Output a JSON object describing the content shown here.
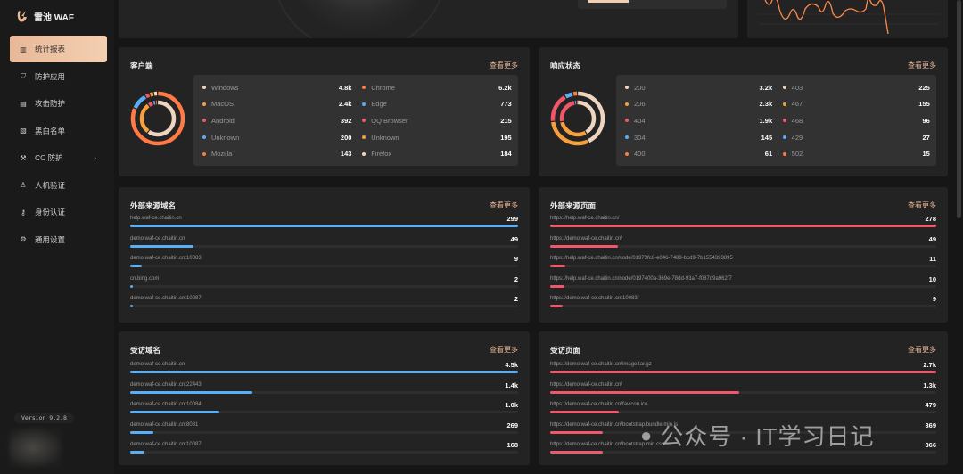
{
  "app": {
    "name": "雷池 WAF",
    "version": "Version 9.2.8"
  },
  "sidebar": {
    "items": [
      {
        "label": "统计报表",
        "icon": "bar-chart-icon",
        "active": true
      },
      {
        "label": "防护应用",
        "icon": "shield-icon"
      },
      {
        "label": "攻击防护",
        "icon": "document-shield-icon"
      },
      {
        "label": "黑白名单",
        "icon": "list-icon"
      },
      {
        "label": "CC 防护",
        "icon": "wand-icon",
        "has_submenu": true
      },
      {
        "label": "人机验证",
        "icon": "robot-icon"
      },
      {
        "label": "身份认证",
        "icon": "key-icon"
      },
      {
        "label": "通用设置",
        "icon": "gear-icon"
      }
    ]
  },
  "colors": {
    "accent": "#e8b898",
    "blue": "#5aaef5",
    "red": "#f0576b",
    "beige": "#efd5bf",
    "orange": "#f5a03c",
    "orange_red": "#ff7a45"
  },
  "more_label": "查看更多",
  "client": {
    "title": "客户端",
    "col1": [
      {
        "name": "Windows",
        "value": "4.8k",
        "color": "#efd5bf",
        "n": 4800
      },
      {
        "name": "MacOS",
        "value": "2.4k",
        "color": "#f5a03c",
        "n": 2400
      },
      {
        "name": "Android",
        "value": "392",
        "color": "#f0576b",
        "n": 392
      },
      {
        "name": "Unknown",
        "value": "200",
        "color": "#5aaef5",
        "n": 200
      },
      {
        "name": "Mozilla",
        "value": "143",
        "color": "#ff7a45",
        "n": 143
      }
    ],
    "col2": [
      {
        "name": "Chrome",
        "value": "6.2k",
        "color": "#ff7a45",
        "n": 6200
      },
      {
        "name": "Edge",
        "value": "773",
        "color": "#5aaef5",
        "n": 773
      },
      {
        "name": "QQ Browser",
        "value": "215",
        "color": "#f0576b",
        "n": 215
      },
      {
        "name": "Unknown",
        "value": "195",
        "color": "#f5a03c",
        "n": 195
      },
      {
        "name": "Firefox",
        "value": "184",
        "color": "#efd5bf",
        "n": 184
      }
    ]
  },
  "status": {
    "title": "响应状态",
    "col1": [
      {
        "name": "200",
        "value": "3.2k",
        "color": "#efd5bf",
        "n": 3200
      },
      {
        "name": "206",
        "value": "2.3k",
        "color": "#f5a03c",
        "n": 2300
      },
      {
        "name": "404",
        "value": "1.9k",
        "color": "#f0576b",
        "n": 1900
      },
      {
        "name": "304",
        "value": "145",
        "color": "#5aaef5",
        "n": 145
      },
      {
        "name": "400",
        "value": "61",
        "color": "#ff7a45",
        "n": 61
      }
    ],
    "col2": [
      {
        "name": "403",
        "value": "225",
        "color": "#efd5bf",
        "n": 225
      },
      {
        "name": "467",
        "value": "155",
        "color": "#f5a03c",
        "n": 155
      },
      {
        "name": "468",
        "value": "96",
        "color": "#f0576b",
        "n": 96
      },
      {
        "name": "429",
        "value": "27",
        "color": "#5aaef5",
        "n": 27
      },
      {
        "name": "502",
        "value": "15",
        "color": "#ff7a45",
        "n": 15
      }
    ]
  },
  "ref_domains": {
    "title": "外部来源域名",
    "color": "#5aaef5",
    "rows": [
      {
        "label": "help.waf-ce.chaitin.cn",
        "value": "299",
        "fraction": 1
      },
      {
        "label": "demo.waf-ce.chaitin.cn",
        "value": "49",
        "fraction": 0.164
      },
      {
        "label": "demo.waf-ce.chaitin.cn:10083",
        "value": "9",
        "fraction": 0.03
      },
      {
        "label": "cn.bing.com",
        "value": "2",
        "fraction": 0.007
      },
      {
        "label": "demo.waf-ce.chaitin.cn:10087",
        "value": "2",
        "fraction": 0.007
      }
    ]
  },
  "ref_pages": {
    "title": "外部来源页面",
    "color": "#f0576b",
    "rows": [
      {
        "label": "https://help.waf-ce.chaitin.cn/",
        "value": "278",
        "fraction": 1
      },
      {
        "label": "https://demo.waf-ce.chaitin.cn/",
        "value": "49",
        "fraction": 0.176
      },
      {
        "label": "https://help.waf-ce.chaitin.cn/node/01973fc6-e046-7489-bcd9-7b1554393895",
        "value": "11",
        "fraction": 0.04
      },
      {
        "label": "https://help.waf-ce.chaitin.cn/node/0197400a-369e-78dd-93a7-f087d9a962f7",
        "value": "10",
        "fraction": 0.036
      },
      {
        "label": "https://demo.waf-ce.chaitin.cn:10083/",
        "value": "9",
        "fraction": 0.032
      }
    ]
  },
  "visited_domains": {
    "title": "受访域名",
    "color": "#5aaef5",
    "rows": [
      {
        "label": "demo.waf-ce.chaitin.cn",
        "value": "4.5k",
        "fraction": 1
      },
      {
        "label": "demo.waf-ce.chaitin.cn:22443",
        "value": "1.4k",
        "fraction": 0.315
      },
      {
        "label": "demo.waf-ce.chaitin.cn:10084",
        "value": "1.0k",
        "fraction": 0.23
      },
      {
        "label": "demo.waf-ce.chaitin.cn:8081",
        "value": "269",
        "fraction": 0.06
      },
      {
        "label": "demo.waf-ce.chaitin.cn:10087",
        "value": "168",
        "fraction": 0.037
      }
    ]
  },
  "visited_pages": {
    "title": "受访页面",
    "color": "#f0576b",
    "rows": [
      {
        "label": "https://demo.waf-ce.chaitin.cn/image.tar.gz",
        "value": "2.7k",
        "fraction": 1
      },
      {
        "label": "https://demo.waf-ce.chaitin.cn/",
        "value": "1.3k",
        "fraction": 0.49
      },
      {
        "label": "https://demo.waf-ce.chaitin.cn/favicon.ico",
        "value": "479",
        "fraction": 0.177
      },
      {
        "label": "https://demo.waf-ce.chaitin.cn/bootstrap.bundle.min.js",
        "value": "369",
        "fraction": 0.137
      },
      {
        "label": "https://demo.waf-ce.chaitin.cn/bootstrap.min.css",
        "value": "366",
        "fraction": 0.136
      }
    ]
  },
  "watermark": "公众号 · IT学习日记"
}
